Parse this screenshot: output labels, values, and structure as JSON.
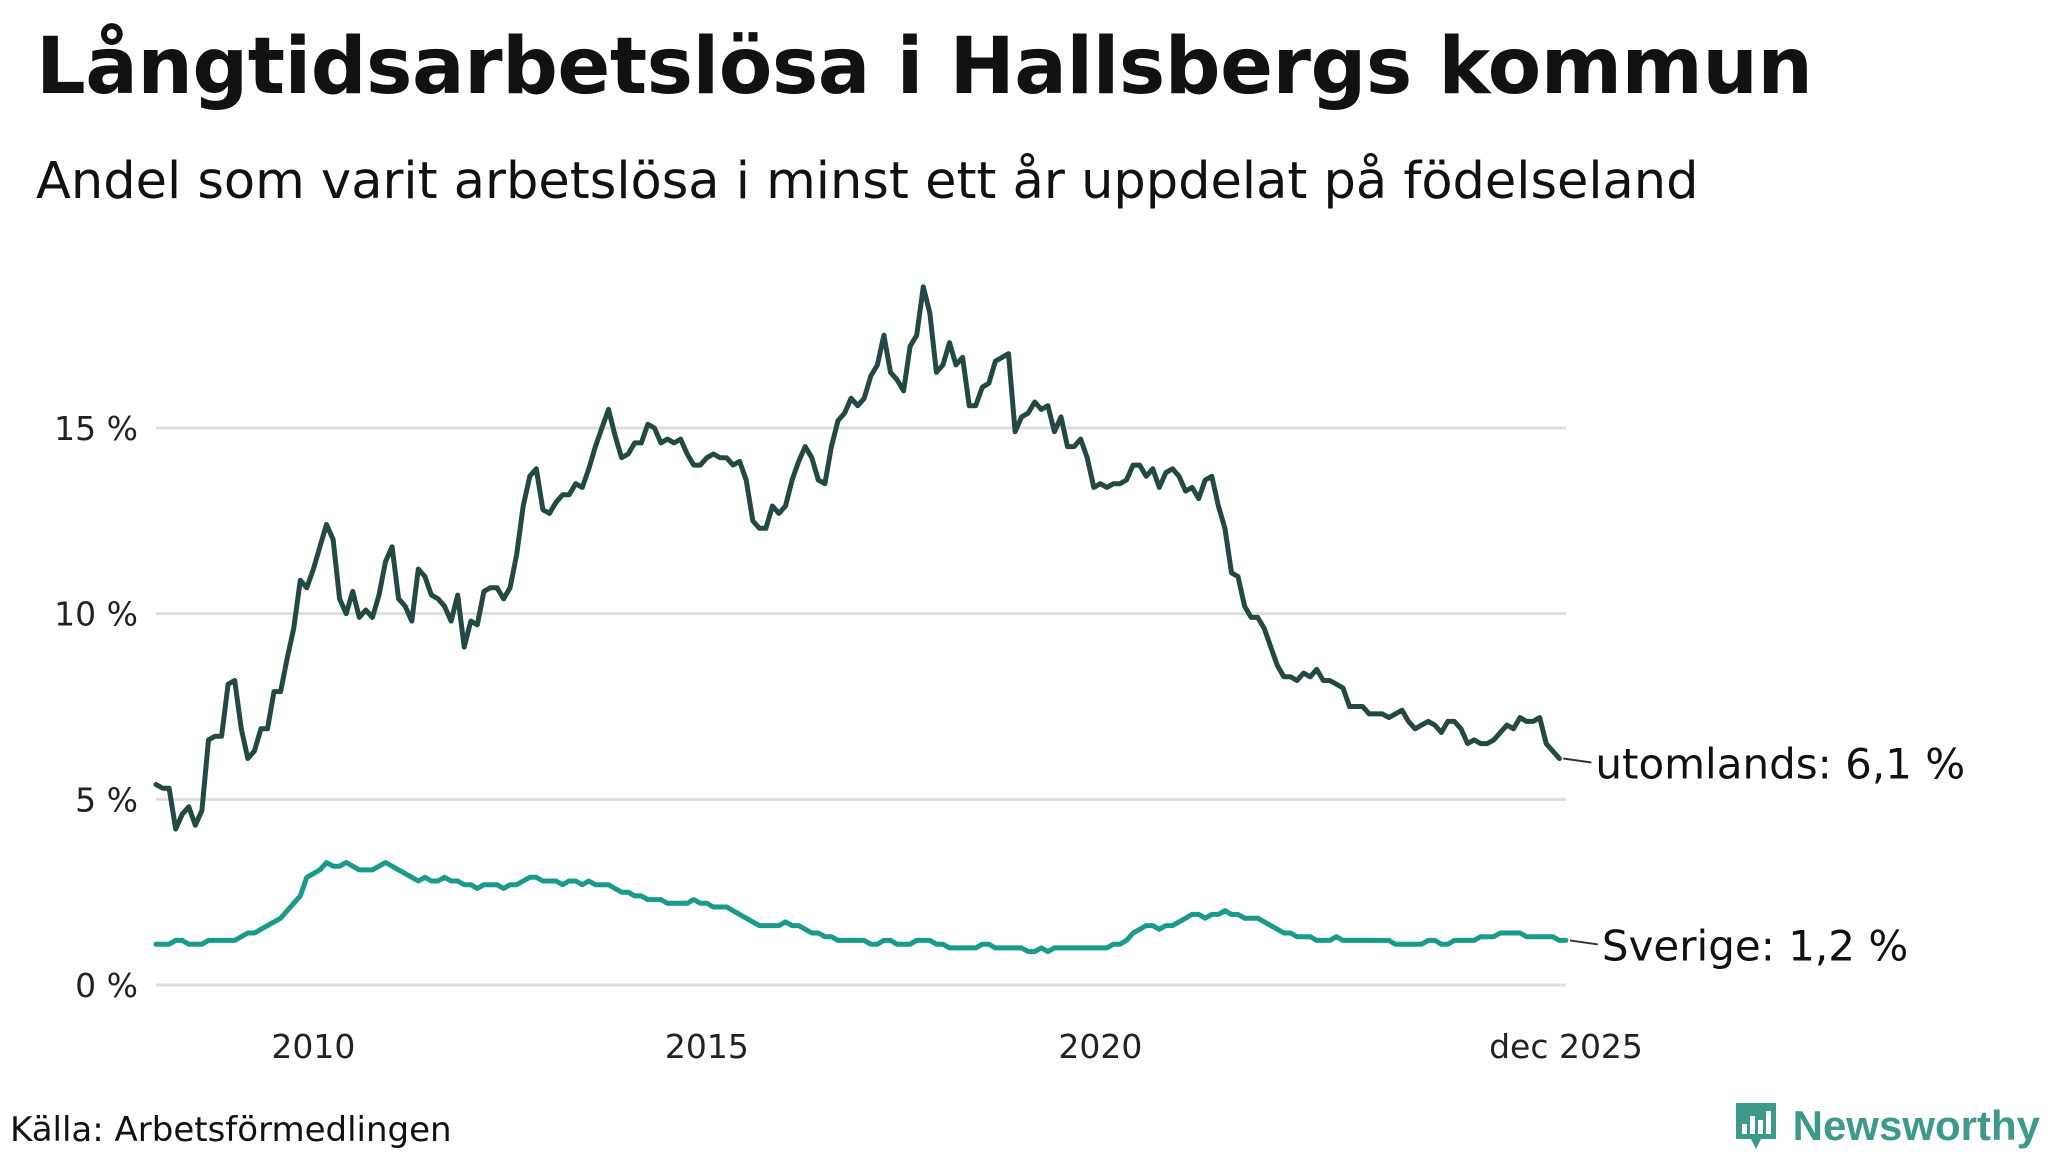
{
  "colors": {
    "foreign": "#234944",
    "sweden": "#1a9a8a",
    "grid": "#dddddd",
    "brand": "#3d9a8b"
  },
  "source": "Källa: Arbetsförmedlingen",
  "brand": {
    "name": "Newsworthy",
    "icon": "bar-chart-logo-icon"
  },
  "chart_data": {
    "type": "line",
    "title": "Långtidsarbetslösa i Hallsbergs kommun",
    "subtitle": "Andel som varit arbetslösa i minst ett år uppdelat på födelseland",
    "xlabel": "",
    "ylabel": "",
    "xlim": [
      2008.0,
      2025.917
    ],
    "ylim": [
      0,
      19
    ],
    "grid": true,
    "x_ticks": [
      {
        "value": 2010,
        "label": "2010"
      },
      {
        "value": 2015,
        "label": "2015"
      },
      {
        "value": 2020,
        "label": "2020"
      },
      {
        "value": 2025.917,
        "label": "dec 2025"
      }
    ],
    "y_ticks": [
      {
        "value": 0,
        "label": "0 %"
      },
      {
        "value": 5,
        "label": "5 %"
      },
      {
        "value": 10,
        "label": "10 %"
      },
      {
        "value": 15,
        "label": "15 %"
      }
    ],
    "x_start": 2008.0,
    "x_step": 0.08333,
    "series": [
      {
        "name": "utomlands",
        "end_label": "utomlands: 6,1 %",
        "values": [
          5.4,
          5.3,
          5.3,
          4.2,
          4.6,
          4.8,
          4.3,
          4.7,
          6.6,
          6.7,
          6.7,
          8.1,
          8.2,
          6.9,
          6.1,
          6.3,
          6.9,
          6.9,
          7.9,
          7.9,
          8.8,
          9.6,
          10.9,
          10.7,
          11.2,
          11.8,
          12.4,
          12.0,
          10.4,
          10.0,
          10.6,
          9.9,
          10.1,
          9.9,
          10.5,
          11.4,
          11.8,
          10.4,
          10.2,
          9.8,
          11.2,
          11.0,
          10.5,
          10.4,
          10.2,
          9.8,
          10.5,
          9.1,
          9.8,
          9.7,
          10.6,
          10.7,
          10.7,
          10.4,
          10.7,
          11.6,
          12.9,
          13.7,
          13.9,
          12.8,
          12.7,
          13.0,
          13.2,
          13.2,
          13.5,
          13.4,
          13.9,
          14.5,
          15.0,
          15.5,
          14.8,
          14.2,
          14.3,
          14.6,
          14.6,
          15.1,
          15.0,
          14.6,
          14.7,
          14.6,
          14.7,
          14.3,
          14.0,
          14.0,
          14.2,
          14.3,
          14.2,
          14.2,
          14.0,
          14.1,
          13.6,
          12.5,
          12.3,
          12.3,
          12.9,
          12.7,
          12.9,
          13.6,
          14.1,
          14.5,
          14.2,
          13.6,
          13.5,
          14.5,
          15.2,
          15.4,
          15.8,
          15.6,
          15.8,
          16.4,
          16.7,
          17.5,
          16.5,
          16.3,
          16.0,
          17.2,
          17.5,
          18.8,
          18.1,
          16.5,
          16.7,
          17.3,
          16.7,
          16.9,
          15.6,
          15.6,
          16.1,
          16.2,
          16.8,
          16.9,
          17.0,
          14.9,
          15.3,
          15.4,
          15.7,
          15.5,
          15.6,
          14.9,
          15.3,
          14.5,
          14.5,
          14.7,
          14.2,
          13.4,
          13.5,
          13.4,
          13.5,
          13.5,
          13.6,
          14.0,
          14.0,
          13.7,
          13.9,
          13.4,
          13.8,
          13.9,
          13.7,
          13.3,
          13.4,
          13.1,
          13.6,
          13.7,
          12.9,
          12.3,
          11.1,
          11.0,
          10.2,
          9.9,
          9.9,
          9.6,
          9.1,
          8.6,
          8.3,
          8.3,
          8.2,
          8.4,
          8.3,
          8.5,
          8.2,
          8.2,
          8.1,
          8.0,
          7.5,
          7.5,
          7.5,
          7.3,
          7.3,
          7.3,
          7.2,
          7.3,
          7.4,
          7.1,
          6.9,
          7.0,
          7.1,
          7.0,
          6.8,
          7.1,
          7.1,
          6.9,
          6.5,
          6.6,
          6.5,
          6.5,
          6.6,
          6.8,
          7.0,
          6.9,
          7.2,
          7.1,
          7.1,
          7.2,
          6.5,
          6.3,
          6.1
        ]
      },
      {
        "name": "Sverige",
        "end_label": "Sverige: 1,2 %",
        "values": [
          1.1,
          1.1,
          1.1,
          1.2,
          1.2,
          1.1,
          1.1,
          1.1,
          1.2,
          1.2,
          1.2,
          1.2,
          1.2,
          1.3,
          1.4,
          1.4,
          1.5,
          1.6,
          1.7,
          1.8,
          2.0,
          2.2,
          2.4,
          2.9,
          3.0,
          3.1,
          3.3,
          3.2,
          3.2,
          3.3,
          3.2,
          3.1,
          3.1,
          3.1,
          3.2,
          3.3,
          3.2,
          3.1,
          3.0,
          2.9,
          2.8,
          2.9,
          2.8,
          2.8,
          2.9,
          2.8,
          2.8,
          2.7,
          2.7,
          2.6,
          2.7,
          2.7,
          2.7,
          2.6,
          2.7,
          2.7,
          2.8,
          2.9,
          2.9,
          2.8,
          2.8,
          2.8,
          2.7,
          2.8,
          2.8,
          2.7,
          2.8,
          2.7,
          2.7,
          2.7,
          2.6,
          2.5,
          2.5,
          2.4,
          2.4,
          2.3,
          2.3,
          2.3,
          2.2,
          2.2,
          2.2,
          2.2,
          2.3,
          2.2,
          2.2,
          2.1,
          2.1,
          2.1,
          2.0,
          1.9,
          1.8,
          1.7,
          1.6,
          1.6,
          1.6,
          1.6,
          1.7,
          1.6,
          1.6,
          1.5,
          1.4,
          1.4,
          1.3,
          1.3,
          1.2,
          1.2,
          1.2,
          1.2,
          1.2,
          1.1,
          1.1,
          1.2,
          1.2,
          1.1,
          1.1,
          1.1,
          1.2,
          1.2,
          1.2,
          1.1,
          1.1,
          1.0,
          1.0,
          1.0,
          1.0,
          1.0,
          1.1,
          1.1,
          1.0,
          1.0,
          1.0,
          1.0,
          1.0,
          0.9,
          0.9,
          1.0,
          0.9,
          1.0,
          1.0,
          1.0,
          1.0,
          1.0,
          1.0,
          1.0,
          1.0,
          1.0,
          1.1,
          1.1,
          1.2,
          1.4,
          1.5,
          1.6,
          1.6,
          1.5,
          1.6,
          1.6,
          1.7,
          1.8,
          1.9,
          1.9,
          1.8,
          1.9,
          1.9,
          2.0,
          1.9,
          1.9,
          1.8,
          1.8,
          1.8,
          1.7,
          1.6,
          1.5,
          1.4,
          1.4,
          1.3,
          1.3,
          1.3,
          1.2,
          1.2,
          1.2,
          1.3,
          1.2,
          1.2,
          1.2,
          1.2,
          1.2,
          1.2,
          1.2,
          1.2,
          1.1,
          1.1,
          1.1,
          1.1,
          1.1,
          1.2,
          1.2,
          1.1,
          1.1,
          1.2,
          1.2,
          1.2,
          1.2,
          1.3,
          1.3,
          1.3,
          1.4,
          1.4,
          1.4,
          1.4,
          1.3,
          1.3,
          1.3,
          1.3,
          1.3,
          1.2,
          1.2
        ]
      }
    ]
  }
}
